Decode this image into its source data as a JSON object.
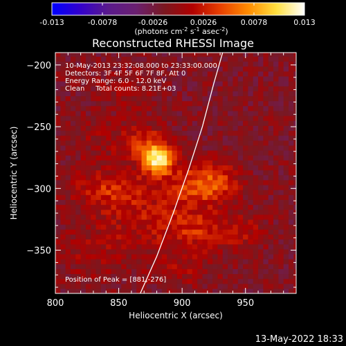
{
  "chart_data": {
    "type": "heatmap",
    "title": "Reconstructed RHESSI Image",
    "xlabel": "Heliocentric X (arcsec)",
    "ylabel": "Heliocentric Y (arcsec)",
    "xlim": [
      800,
      990
    ],
    "ylim": [
      -385,
      -190
    ],
    "x_ticks": [
      800,
      850,
      900,
      950
    ],
    "y_ticks": [
      -200,
      -250,
      -300,
      -350
    ],
    "colorbar": {
      "range": [
        -0.013,
        0.013
      ],
      "ticks": [
        "-0.013",
        "-0.0078",
        "-0.0026",
        "0.0026",
        "0.0078",
        "0.013"
      ],
      "unit_main": "(photons cm",
      "unit_exp1": "-2",
      "unit_mid1": " s",
      "unit_exp2": "-1",
      "unit_mid2": " asec",
      "unit_exp3": "-2",
      "unit_end": ")",
      "stops": [
        "#0000ff",
        "#3300cc",
        "#5a1a8c",
        "#6a2070",
        "#7a1820",
        "#b00000",
        "#e84000",
        "#ff8c00",
        "#ffe040",
        "#ffffff"
      ]
    },
    "annotations": [
      "10-May-2013 23:32:08.000 to 23:33:00.000",
      "Detectors: 3F 4F 5F 6F 7F 8F, Att 0",
      "Energy Range: 6.0 - 12.0 keV",
      "Clean     Total counts: 8.21E+03"
    ],
    "peak_label": "Position of Peak = [881,-276]",
    "peak": {
      "x": 881,
      "y": -276,
      "value": 0.013
    },
    "sources": [
      {
        "x": 881,
        "y": -276,
        "sx": 8,
        "sy": 8,
        "value": 0.0125
      },
      {
        "x": 868,
        "y": -262,
        "sx": 14,
        "sy": 10,
        "value": 0.004
      },
      {
        "x": 845,
        "y": -302,
        "sx": 22,
        "sy": 12,
        "value": 0.0045
      },
      {
        "x": 905,
        "y": -300,
        "sx": 18,
        "sy": 14,
        "value": 0.004
      },
      {
        "x": 925,
        "y": -295,
        "sx": 14,
        "sy": 10,
        "value": 0.0045
      },
      {
        "x": 918,
        "y": -335,
        "sx": 16,
        "sy": 10,
        "value": 0.0035
      },
      {
        "x": 880,
        "y": -330,
        "sx": 22,
        "sy": 12,
        "value": 0.003
      },
      {
        "x": 855,
        "y": -220,
        "sx": 16,
        "sy": 12,
        "value": 0.0015
      },
      {
        "x": 830,
        "y": -260,
        "sx": 14,
        "sy": 14,
        "value": 0.0012
      },
      {
        "x": 832,
        "y": -350,
        "sx": 20,
        "sy": 16,
        "value": 0.002
      },
      {
        "x": 900,
        "y": -365,
        "sx": 18,
        "sy": 10,
        "value": 0.002
      },
      {
        "x": 952,
        "y": -335,
        "sx": 12,
        "sy": 10,
        "value": 0.002
      }
    ],
    "limb_curve": [
      [
        867,
        -385
      ],
      [
        880,
        -355
      ],
      [
        893,
        -320
      ],
      [
        905,
        -285
      ],
      [
        916,
        -250
      ],
      [
        925,
        -215
      ],
      [
        932,
        -190
      ]
    ],
    "grid": false,
    "legend": "none"
  },
  "footer_timestamp": "13-May-2022 18:33"
}
